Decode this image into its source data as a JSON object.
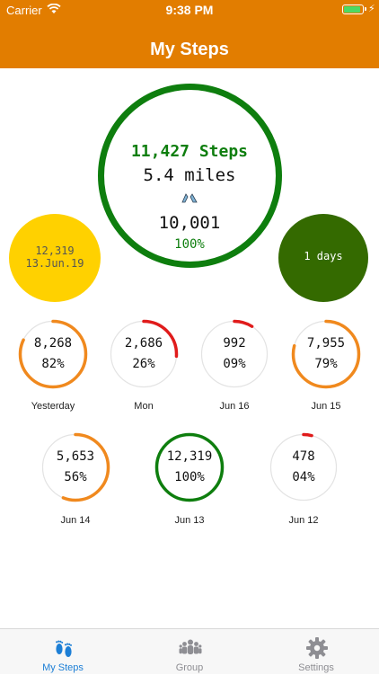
{
  "status_bar": {
    "carrier": "Carrier",
    "time": "9:38 PM",
    "battery_color": "#4CD964"
  },
  "nav": {
    "title": "My Steps",
    "background": "#E27D00"
  },
  "today": {
    "steps": "11,427 Steps",
    "miles": "5.4 miles",
    "goal": "10,001",
    "percent": "100%",
    "progress": 1.0,
    "color": "#0E7E0E"
  },
  "best_day": {
    "steps": "12,319",
    "date": "13.Jun.19",
    "color": "#FFD100"
  },
  "streak": {
    "text": "1 days",
    "color": "#346A00"
  },
  "history": [
    {
      "steps": "8,268",
      "percent": "82%",
      "label": "Yesterday",
      "progress": 0.82,
      "color": "#F0891E"
    },
    {
      "steps": "2,686",
      "percent": "26%",
      "label": "Mon",
      "progress": 0.26,
      "color": "#E01B1B"
    },
    {
      "steps": "992",
      "percent": "09%",
      "label": "Jun 16",
      "progress": 0.09,
      "color": "#E01B1B"
    },
    {
      "steps": "7,955",
      "percent": "79%",
      "label": "Jun 15",
      "progress": 0.79,
      "color": "#F0891E"
    },
    {
      "steps": "5,653",
      "percent": "56%",
      "label": "Jun 14",
      "progress": 0.56,
      "color": "#F0891E"
    },
    {
      "steps": "12,319",
      "percent": "100%",
      "label": "Jun 13",
      "progress": 1.0,
      "color": "#0E7E0E"
    },
    {
      "steps": "478",
      "percent": "04%",
      "label": "Jun 12",
      "progress": 0.04,
      "color": "#E01B1B"
    }
  ],
  "tabs": [
    {
      "label": "My Steps",
      "icon": "footprints-icon",
      "active": true
    },
    {
      "label": "Group",
      "icon": "group-icon",
      "active": false
    },
    {
      "label": "Settings",
      "icon": "gear-icon",
      "active": false
    }
  ],
  "colors": {
    "active_tab": "#1D7FD6",
    "inactive_tab": "#8E8E93"
  }
}
